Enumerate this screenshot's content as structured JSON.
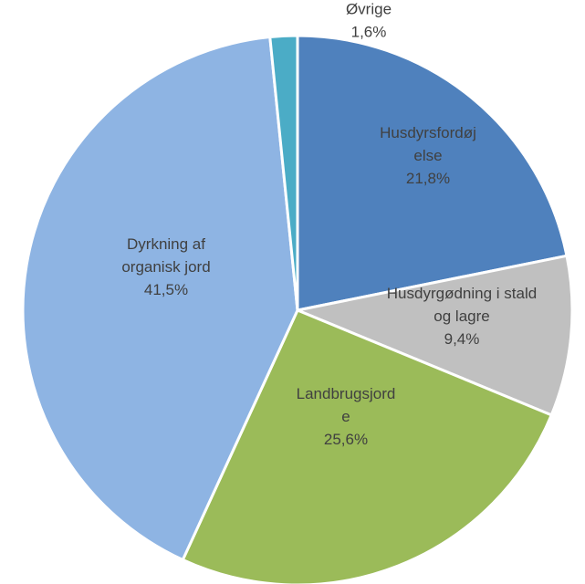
{
  "chart_data": {
    "type": "pie",
    "title": "",
    "start_angle_deg": 0,
    "direction": "clockwise",
    "slices": [
      {
        "label_lines": [
          "Husdyrsfordøj",
          "else"
        ],
        "value": 21.8,
        "value_label": "21,8%",
        "color": "#4F81BD"
      },
      {
        "label_lines": [
          "Husdyrgødning i stald",
          "og lagre"
        ],
        "value": 9.4,
        "value_label": "9,4%",
        "color": "#C0C0C0"
      },
      {
        "label_lines": [
          "Landbrugsjord",
          "e"
        ],
        "value": 25.6,
        "value_label": "25,6%",
        "color": "#9BBB59"
      },
      {
        "label_lines": [
          "Dyrkning af",
          "organisk jord"
        ],
        "value": 41.5,
        "value_label": "41,5%",
        "color": "#8EB4E3"
      },
      {
        "label_lines": [
          "Øvrige"
        ],
        "value": 1.6,
        "value_label": "1,6%",
        "color": "#4BACC6"
      }
    ]
  }
}
